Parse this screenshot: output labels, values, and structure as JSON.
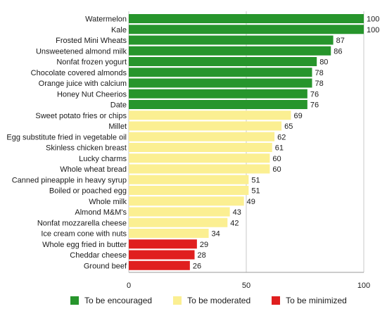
{
  "chart_data": {
    "type": "bar",
    "orientation": "horizontal",
    "categories": [
      "Watermelon",
      "Kale",
      "Frosted Mini Wheats",
      "Unsweetened almond milk",
      "Nonfat frozen yogurt",
      "Chocolate covered almonds",
      "Orange juice with calcium",
      "Honey Nut Cheerios",
      "Date",
      "Sweet potato fries or chips",
      "Millet",
      "Egg substitute fried in vegetable oil",
      "Skinless chicken breast",
      "Lucky charms",
      "Whole wheat bread",
      "Canned pineapple in heavy syrup",
      "Boiled or poached egg",
      "Whole milk",
      "Almond M&M's",
      "Nonfat mozzarella cheese",
      "Ice cream cone with nuts",
      "Whole egg fried in butter",
      "Cheddar cheese",
      "Ground beef"
    ],
    "values": [
      100,
      100,
      87,
      86,
      80,
      78,
      78,
      76,
      76,
      69,
      65,
      62,
      61,
      60,
      60,
      51,
      51,
      49,
      43,
      42,
      34,
      29,
      28,
      26
    ],
    "groups": [
      "encouraged",
      "encouraged",
      "encouraged",
      "encouraged",
      "encouraged",
      "encouraged",
      "encouraged",
      "encouraged",
      "encouraged",
      "moderated",
      "moderated",
      "moderated",
      "moderated",
      "moderated",
      "moderated",
      "moderated",
      "moderated",
      "moderated",
      "moderated",
      "moderated",
      "moderated",
      "minimized",
      "minimized",
      "minimized"
    ],
    "xlim": [
      0,
      100
    ],
    "xticks": [
      0,
      50,
      100
    ],
    "grid": "vertical lines at ticks",
    "legend_position": "bottom",
    "legend": [
      {
        "key": "encouraged",
        "label": "To be encouraged",
        "color": "#27952c"
      },
      {
        "key": "moderated",
        "label": "To be moderated",
        "color": "#fbef92"
      },
      {
        "key": "minimized",
        "label": "To be minimized",
        "color": "#e01f1f"
      }
    ]
  }
}
